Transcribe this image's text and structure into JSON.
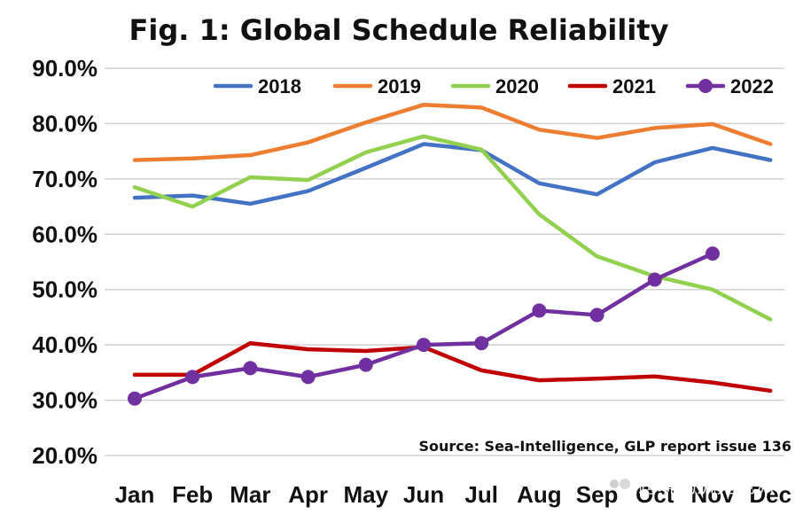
{
  "chart_data": {
    "type": "line",
    "title": "Fig. 1: Global Schedule Reliability",
    "categories": [
      "Jan",
      "Feb",
      "Mar",
      "Apr",
      "May",
      "Jun",
      "Jul",
      "Aug",
      "Sep",
      "Oct",
      "Nov",
      "Dec"
    ],
    "ylim": [
      20,
      90
    ],
    "yticks": [
      "20.0%",
      "30.0%",
      "40.0%",
      "50.0%",
      "60.0%",
      "70.0%",
      "80.0%",
      "90.0%"
    ],
    "grid": true,
    "legend_position": "top",
    "source": "Source: Sea-Intelligence, GLP report issue 136",
    "series": [
      {
        "name": "2018",
        "color": "#4472c4",
        "marker": false,
        "values": [
          66.6,
          67.0,
          65.5,
          67.8,
          72.0,
          76.3,
          75.2,
          69.2,
          67.2,
          73.0,
          75.6,
          73.4
        ]
      },
      {
        "name": "2019",
        "color": "#ed7d31",
        "marker": false,
        "values": [
          73.4,
          73.7,
          74.3,
          76.6,
          80.2,
          83.4,
          82.9,
          78.9,
          77.4,
          79.2,
          79.9,
          76.3
        ]
      },
      {
        "name": "2020",
        "color": "#92d050",
        "marker": false,
        "values": [
          68.5,
          65.0,
          70.3,
          69.8,
          74.8,
          77.7,
          75.3,
          63.6,
          56.0,
          52.4,
          50.0,
          44.6
        ]
      },
      {
        "name": "2021",
        "color": "#c00000",
        "marker": false,
        "values": [
          34.6,
          34.6,
          40.3,
          39.2,
          38.9,
          39.6,
          35.4,
          33.6,
          33.9,
          34.3,
          33.2,
          31.7
        ]
      },
      {
        "name": "2022",
        "color": "#7030a0",
        "marker": true,
        "values": [
          30.3,
          34.2,
          35.8,
          34.2,
          36.4,
          40.0,
          40.3,
          46.2,
          45.4,
          51.8,
          56.5,
          null
        ]
      }
    ]
  },
  "watermark": {
    "text": "跨境物流充电派"
  }
}
